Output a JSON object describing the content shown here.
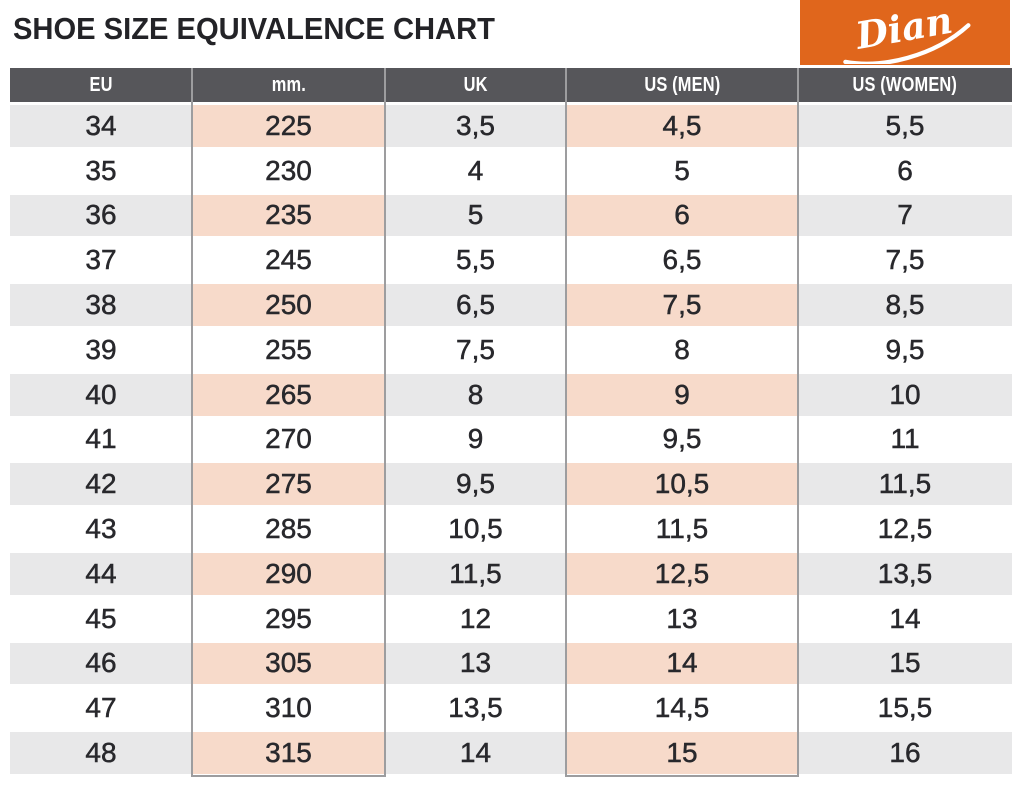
{
  "page_title": "SHOE SIZE EQUIVALENCE CHART",
  "logo": {
    "brand_text": "Dian"
  },
  "colors": {
    "brand_orange": "#E0661C",
    "header_bg": "#56565A",
    "row_gray": "#E8E8E9",
    "row_pink": "#F7DACA",
    "grid_line": "#9D9D9F",
    "text_dark": "#28282C"
  },
  "chart_data": {
    "type": "table",
    "title": "SHOE SIZE EQUIVALENCE CHART",
    "columns": [
      "EU",
      "mm.",
      "UK",
      "US (MEN)",
      "US (WOMEN)"
    ],
    "highlighted_columns": [
      "mm.",
      "US (MEN)"
    ],
    "rows": [
      [
        "34",
        "225",
        "3,5",
        "4,5",
        "5,5"
      ],
      [
        "35",
        "230",
        "4",
        "5",
        "6"
      ],
      [
        "36",
        "235",
        "5",
        "6",
        "7"
      ],
      [
        "37",
        "245",
        "5,5",
        "6,5",
        "7,5"
      ],
      [
        "38",
        "250",
        "6,5",
        "7,5",
        "8,5"
      ],
      [
        "39",
        "255",
        "7,5",
        "8",
        "9,5"
      ],
      [
        "40",
        "265",
        "8",
        "9",
        "10"
      ],
      [
        "41",
        "270",
        "9",
        "9,5",
        "11"
      ],
      [
        "42",
        "275",
        "9,5",
        "10,5",
        "11,5"
      ],
      [
        "43",
        "285",
        "10,5",
        "11,5",
        "12,5"
      ],
      [
        "44",
        "290",
        "11,5",
        "12,5",
        "13,5"
      ],
      [
        "45",
        "295",
        "12",
        "13",
        "14"
      ],
      [
        "46",
        "305",
        "13",
        "14",
        "15"
      ],
      [
        "47",
        "310",
        "13,5",
        "14,5",
        "15,5"
      ],
      [
        "48",
        "315",
        "14",
        "15",
        "16"
      ]
    ]
  }
}
